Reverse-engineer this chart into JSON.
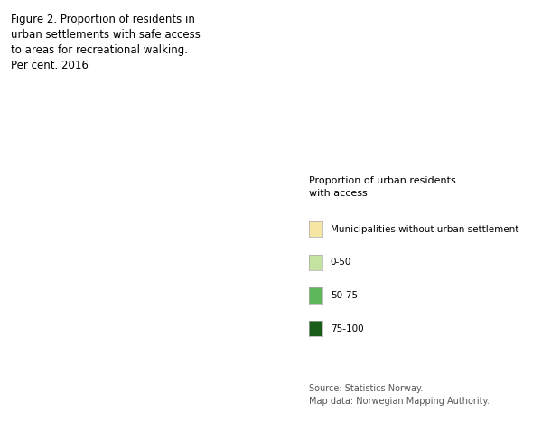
{
  "title_lines": [
    "Figure 2. Proportion of residents in",
    "urban settlements with safe access",
    "to areas for recreational walking.",
    "Per cent. 2016"
  ],
  "legend_title": "Proportion of urban residents\nwith access",
  "legend_items": [
    {
      "label": "Municipalities without urban settlement",
      "color": "#F5E6A3"
    },
    {
      "label": "0-50",
      "color": "#C5E3A0"
    },
    {
      "label": "50-75",
      "color": "#5DB85B"
    },
    {
      "label": "75-100",
      "color": "#1A5C1A"
    }
  ],
  "source_text": "Source: Statistics Norway.\nMap data: Norwegian Mapping Authority.",
  "background_color": "#FFFFFF",
  "fig_width": 6.1,
  "fig_height": 4.88,
  "dpi": 100,
  "map_colors": {
    "no_urban": "#F5E6A3",
    "low": "#C5E3A0",
    "mid": "#5DB85B",
    "high": "#1A5C1A"
  },
  "edge_color": "#FFFFFF",
  "edge_width": 0.3
}
